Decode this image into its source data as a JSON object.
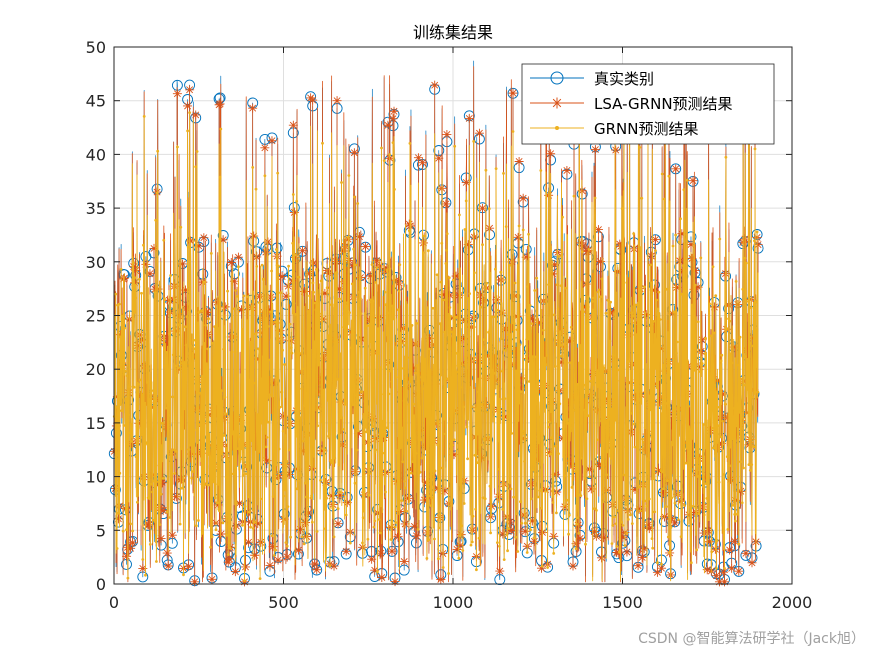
{
  "chart_data": {
    "type": "line",
    "title": "训练集结果",
    "xlabel": "",
    "ylabel": "",
    "xlim": [
      0,
      2000
    ],
    "ylim": [
      0,
      50
    ],
    "xticks": [
      0,
      500,
      1000,
      1500,
      2000
    ],
    "yticks": [
      0,
      5,
      10,
      15,
      20,
      25,
      30,
      35,
      40,
      45,
      50
    ],
    "grid": true,
    "legend_position": "top-right",
    "n_points": 1900,
    "series": [
      {
        "name": "真实类别",
        "color": "#0072BD",
        "marker": "circle",
        "line": true
      },
      {
        "name": "LSA-GRNN预测结果",
        "color": "#D95319",
        "marker": "asterisk",
        "line": true
      },
      {
        "name": "GRNN预测结果",
        "color": "#EDB120",
        "marker": "dot",
        "line": true
      }
    ],
    "annotations": [
      "high-frequency oscillation between about 0.3 and 48.5",
      "peak near x=1060 at about 48.7"
    ]
  },
  "watermark": "CSDN @智能算法研学社（Jack旭）"
}
